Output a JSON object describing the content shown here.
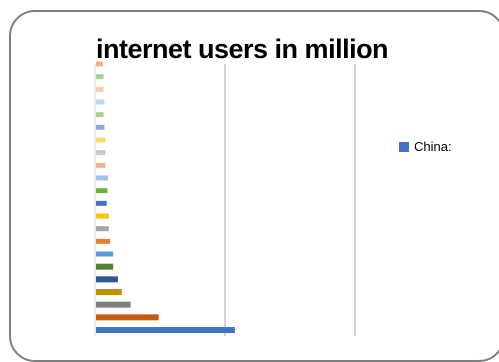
{
  "chart_data": {
    "type": "bar",
    "orientation": "horizontal",
    "title": "internet users in million",
    "xlabel": "",
    "ylabel": "",
    "xlim": [
      0,
      1000
    ],
    "grid": true,
    "legend_position": "right",
    "series": [
      {
        "name": "China:",
        "values": [
          538,
          245,
          137,
          103,
          88,
          70,
          70,
          58,
          53,
          53,
          45,
          48,
          50,
          40,
          40,
          40,
          36,
          33,
          36,
          33,
          33,
          30
        ]
      }
    ],
    "colors": {
      "legend_swatch": "#4472c4",
      "bars": [
        "#4472c4",
        "#c55a11",
        "#7f7f7f",
        "#bf9000",
        "#2f5597",
        "#548235",
        "#5b9bd5",
        "#ed7d31",
        "#a5a5a5",
        "#ffc000",
        "#4472c4",
        "#70ad47",
        "#9dc3e6",
        "#f4b183",
        "#c9c9c9",
        "#ffd966",
        "#8faadc",
        "#a9d18e",
        "#bdd7ee",
        "#f8cbad",
        "#a9d18e",
        "#f4b183"
      ],
      "gridline": "#a6a6a6"
    }
  }
}
